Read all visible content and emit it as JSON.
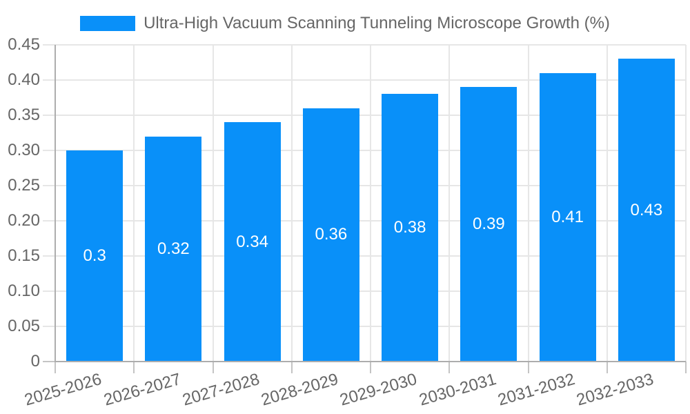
{
  "chart_data": {
    "type": "bar",
    "title": "",
    "xlabel": "",
    "ylabel": "",
    "legend_position": "top",
    "grid": true,
    "categories": [
      "2025-2026",
      "2026-2027",
      "2027-2028",
      "2028-2029",
      "2029-2030",
      "2030-2031",
      "2031-2032",
      "2032-2033"
    ],
    "series": [
      {
        "name": "Ultra-High Vacuum Scanning Tunneling Microscope Growth (%)",
        "values": [
          0.3,
          0.32,
          0.34,
          0.36,
          0.38,
          0.39,
          0.41,
          0.43
        ]
      }
    ],
    "bar_value_labels": [
      "0.3",
      "0.32",
      "0.34",
      "0.36",
      "0.38",
      "0.39",
      "0.41",
      "0.43"
    ],
    "ylim": [
      0,
      0.45
    ],
    "ytick_step": 0.05,
    "ytick_labels": [
      "0",
      "0.05",
      "0.10",
      "0.15",
      "0.20",
      "0.25",
      "0.30",
      "0.35",
      "0.40",
      "0.45"
    ],
    "colors": {
      "bar": "#0990f9",
      "bar_value_text": "#ffffff",
      "tick_text": "#666666",
      "grid": "#e6e6e6",
      "axis": "#adadad",
      "tick_mark": "#c4c4c4",
      "background": "#ffffff"
    }
  }
}
